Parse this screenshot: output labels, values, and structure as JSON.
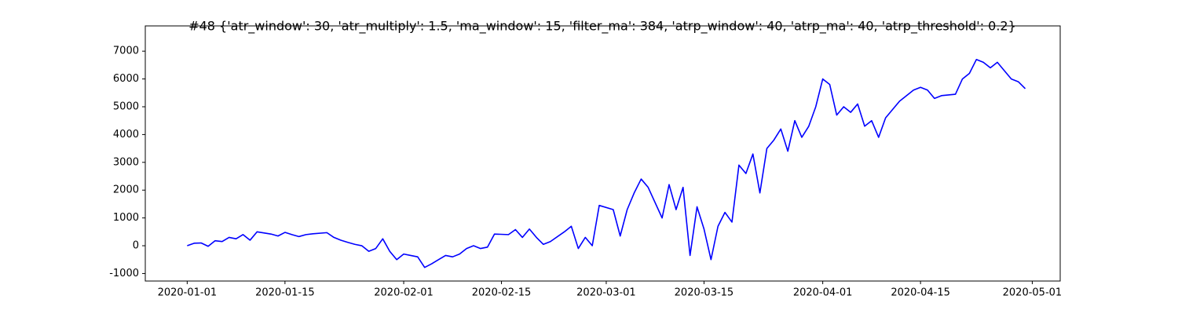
{
  "chart_data": {
    "type": "line",
    "title": "#48 {'atr_window': 30, 'atr_multiply': 1.5, 'ma_window': 15, 'filter_ma': 384, 'atrp_window': 40, 'atrp_ma': 40, 'atrp_threshold': 0.2}",
    "x": [
      "2020-01-01",
      "2020-01-02",
      "2020-01-03",
      "2020-01-04",
      "2020-01-05",
      "2020-01-06",
      "2020-01-07",
      "2020-01-08",
      "2020-01-09",
      "2020-01-10",
      "2020-01-11",
      "2020-01-13",
      "2020-01-14",
      "2020-01-15",
      "2020-01-16",
      "2020-01-17",
      "2020-01-18",
      "2020-01-19",
      "2020-01-21",
      "2020-01-22",
      "2020-01-23",
      "2020-01-24",
      "2020-01-25",
      "2020-01-26",
      "2020-01-27",
      "2020-01-28",
      "2020-01-29",
      "2020-01-30",
      "2020-01-31",
      "2020-02-01",
      "2020-02-02",
      "2020-02-03",
      "2020-02-04",
      "2020-02-05",
      "2020-02-06",
      "2020-02-07",
      "2020-02-08",
      "2020-02-09",
      "2020-02-10",
      "2020-02-11",
      "2020-02-12",
      "2020-02-13",
      "2020-02-14",
      "2020-02-16",
      "2020-02-17",
      "2020-02-18",
      "2020-02-19",
      "2020-02-20",
      "2020-02-21",
      "2020-02-22",
      "2020-02-24",
      "2020-02-25",
      "2020-02-26",
      "2020-02-27",
      "2020-02-28",
      "2020-02-29",
      "2020-03-02",
      "2020-03-03",
      "2020-03-04",
      "2020-03-05",
      "2020-03-06",
      "2020-03-07",
      "2020-03-09",
      "2020-03-10",
      "2020-03-11",
      "2020-03-12",
      "2020-03-13",
      "2020-03-14",
      "2020-03-15",
      "2020-03-16",
      "2020-03-17",
      "2020-03-18",
      "2020-03-19",
      "2020-03-20",
      "2020-03-21",
      "2020-03-22",
      "2020-03-23",
      "2020-03-24",
      "2020-03-25",
      "2020-03-26",
      "2020-03-27",
      "2020-03-28",
      "2020-03-29",
      "2020-03-30",
      "2020-03-31",
      "2020-04-01",
      "2020-04-02",
      "2020-04-03",
      "2020-04-04",
      "2020-04-05",
      "2020-04-06",
      "2020-04-07",
      "2020-04-08",
      "2020-04-09",
      "2020-04-10",
      "2020-04-11",
      "2020-04-12",
      "2020-04-14",
      "2020-04-15",
      "2020-04-16",
      "2020-04-17",
      "2020-04-18",
      "2020-04-20",
      "2020-04-21",
      "2020-04-22",
      "2020-04-23",
      "2020-04-24",
      "2020-04-25",
      "2020-04-26",
      "2020-04-27",
      "2020-04-28",
      "2020-04-29",
      "2020-04-30"
    ],
    "series": [
      {
        "color": "#0000ff",
        "values": [
          0,
          90,
          100,
          -20,
          180,
          150,
          300,
          250,
          400,
          200,
          500,
          420,
          350,
          480,
          400,
          330,
          400,
          430,
          470,
          300,
          200,
          120,
          50,
          0,
          -200,
          -100,
          250,
          -200,
          -500,
          -300,
          -350,
          -400,
          -780,
          -650,
          -500,
          -350,
          -400,
          -300,
          -100,
          0,
          -100,
          -50,
          420,
          400,
          580,
          300,
          600,
          300,
          50,
          150,
          500,
          700,
          -100,
          300,
          0,
          1450,
          1300,
          350,
          1300,
          1900,
          2400,
          2100,
          1000,
          2200,
          1300,
          2100,
          -350,
          1400,
          600,
          -500,
          700,
          1200,
          850,
          2900,
          2600,
          3300,
          1900,
          3500,
          3800,
          4200,
          3400,
          4500,
          3900,
          4300,
          5000,
          6000,
          5800,
          4700,
          5000,
          4800,
          5100,
          4300,
          4500,
          3900,
          4600,
          4900,
          5200,
          5600,
          5700,
          5600,
          5300,
          5400,
          5450,
          6000,
          6200,
          6700,
          6600,
          6400,
          6600,
          6300,
          6000,
          5900,
          5650
        ]
      }
    ],
    "xlim": [
      "2019-12-26",
      "2020-05-05"
    ],
    "xticks": [
      "2020-01-01",
      "2020-01-15",
      "2020-02-01",
      "2020-02-15",
      "2020-03-01",
      "2020-03-15",
      "2020-04-01",
      "2020-04-15",
      "2020-05-01"
    ],
    "ylim": [
      -1270,
      7485
    ],
    "yticks": [
      -1000,
      0,
      1000,
      2000,
      3000,
      4000,
      5000,
      6000,
      7000
    ]
  }
}
